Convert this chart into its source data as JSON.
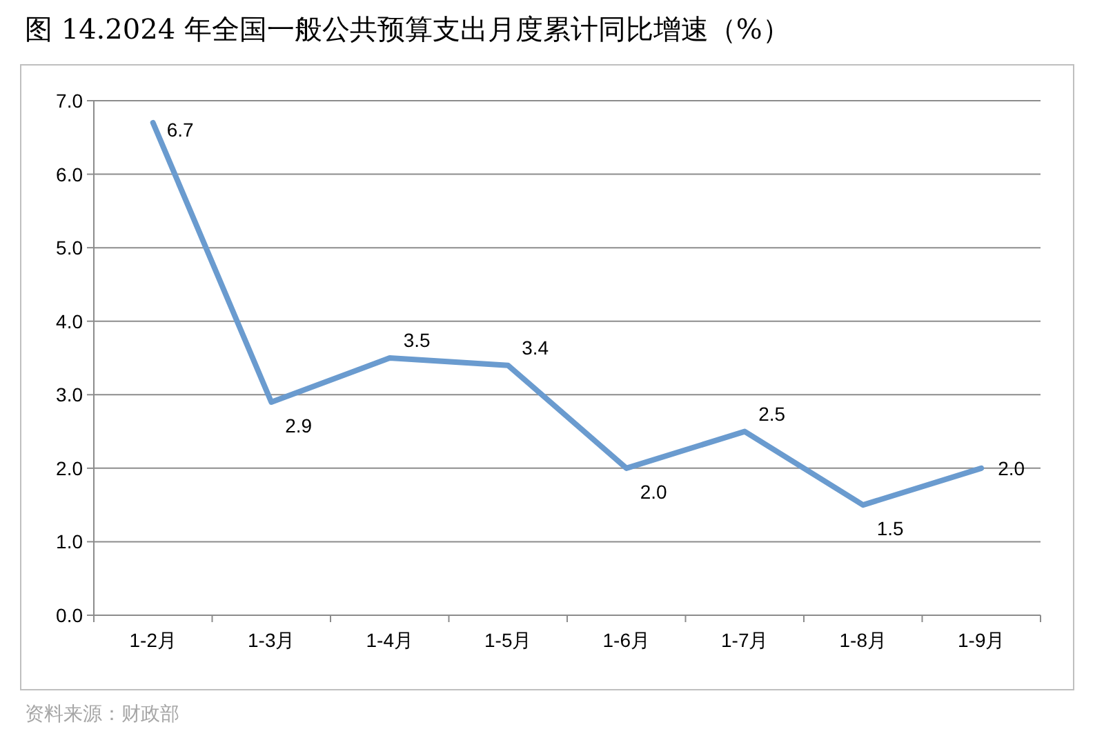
{
  "chart_data": {
    "type": "line",
    "title": "图 14.2024 年全国一般公共预算支出月度累计同比增速（%）",
    "categories": [
      "1-2月",
      "1-3月",
      "1-4月",
      "1-5月",
      "1-6月",
      "1-7月",
      "1-8月",
      "1-9月"
    ],
    "series": [
      {
        "color": "#6a9bcf",
        "values": [
          6.7,
          2.9,
          3.5,
          3.4,
          2.0,
          2.5,
          1.5,
          2.0
        ],
        "value_labels": [
          "6.7",
          "2.9",
          "3.5",
          "3.4",
          "2.0",
          "2.5",
          "1.5",
          "2.0"
        ]
      }
    ],
    "ylim": [
      0,
      7
    ],
    "yticks": [
      {
        "value": 0,
        "label": "0.0"
      },
      {
        "value": 1,
        "label": "1.0"
      },
      {
        "value": 2,
        "label": "2.0"
      },
      {
        "value": 3,
        "label": "3.0"
      },
      {
        "value": 4,
        "label": "4.0"
      },
      {
        "value": 5,
        "label": "5.0"
      },
      {
        "value": 6,
        "label": "6.0"
      },
      {
        "value": 7,
        "label": "7.0"
      }
    ],
    "grid": "y",
    "marker": "none",
    "line_style": "solid",
    "annotations": [
      "资料来源：财政部"
    ]
  }
}
